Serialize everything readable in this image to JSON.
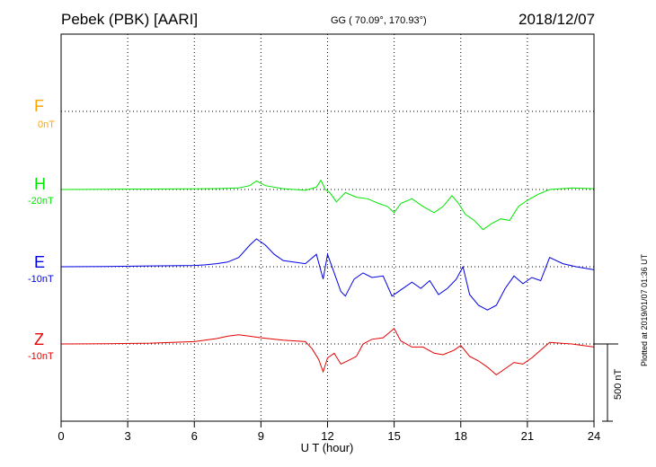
{
  "header": {
    "station": "Pebek (PBK)  [AARI]",
    "coords": "GG ( 70.09°, 170.93°)",
    "date": "2018/12/07",
    "plotted": "Plotted at 2019/01/07 01:36 UT"
  },
  "scale_bar_label": "500 nT",
  "channels": [
    {
      "name": "F",
      "offset": "0nT",
      "color": "#ffa500"
    },
    {
      "name": "H",
      "offset": "-20nT",
      "color": "#00e600"
    },
    {
      "name": "E",
      "offset": "-10nT",
      "color": "#0000e6"
    },
    {
      "name": "Z",
      "offset": "-10nT",
      "color": "#e60000"
    }
  ],
  "chart_data": {
    "type": "line",
    "xlabel": "U T (hour)",
    "xlim": [
      0,
      24
    ],
    "xticks": [
      0,
      3,
      6,
      9,
      12,
      15,
      18,
      21,
      24
    ],
    "scale_nT": 500,
    "grid": true,
    "series": [
      {
        "name": "H",
        "color": "#00e600",
        "x": [
          0,
          2,
          4,
          6,
          7,
          8,
          8.5,
          8.8,
          9.2,
          10,
          11,
          11.5,
          11.7,
          11.9,
          12.1,
          12.4,
          12.8,
          13.3,
          13.8,
          14.3,
          14.7,
          15.0,
          15.3,
          15.8,
          16.3,
          16.8,
          17.2,
          17.6,
          17.9,
          18.2,
          18.6,
          19.0,
          19.4,
          19.8,
          20.2,
          20.6,
          21.0,
          21.5,
          22,
          23,
          24
        ],
        "y": [
          0,
          2,
          3,
          4,
          6,
          10,
          25,
          55,
          25,
          5,
          -5,
          15,
          60,
          0,
          -20,
          -80,
          -20,
          -50,
          -60,
          -90,
          -110,
          -150,
          -90,
          -60,
          -110,
          -150,
          -110,
          -40,
          -90,
          -160,
          -200,
          -260,
          -220,
          -190,
          -200,
          -110,
          -70,
          -30,
          0,
          10,
          5
        ]
      },
      {
        "name": "E",
        "color": "#0000e6",
        "x": [
          0,
          2,
          4,
          6,
          6.5,
          7,
          7.5,
          8,
          8.5,
          8.8,
          9.2,
          9.6,
          10,
          11,
          11.5,
          11.8,
          12.0,
          12.3,
          12.6,
          12.8,
          13.2,
          13.6,
          14.0,
          14.5,
          14.9,
          15.3,
          15.8,
          16.2,
          16.6,
          17.0,
          17.4,
          17.8,
          18.1,
          18.4,
          18.8,
          19.2,
          19.6,
          20.0,
          20.4,
          20.8,
          21.2,
          21.6,
          22,
          22.6,
          23.2,
          24
        ],
        "y": [
          0,
          2,
          5,
          8,
          12,
          20,
          30,
          60,
          140,
          180,
          140,
          80,
          40,
          20,
          80,
          -80,
          80,
          -40,
          -160,
          -190,
          -80,
          -40,
          -70,
          -60,
          -190,
          -150,
          -100,
          -140,
          -90,
          -180,
          -140,
          -80,
          0,
          -180,
          -250,
          -280,
          -250,
          -140,
          -60,
          -110,
          -70,
          -90,
          60,
          20,
          0,
          -20
        ]
      },
      {
        "name": "Z",
        "color": "#e60000",
        "x": [
          0,
          2,
          4,
          6,
          7,
          7.5,
          8,
          8.5,
          9,
          10,
          11,
          11.3,
          11.6,
          11.8,
          12.0,
          12.3,
          12.6,
          12.9,
          13.3,
          13.6,
          14.0,
          14.5,
          15.0,
          15.3,
          15.8,
          16.3,
          16.8,
          17.2,
          17.7,
          18.0,
          18.4,
          18.8,
          19.2,
          19.6,
          20.0,
          20.4,
          20.8,
          21.2,
          21.6,
          22,
          23,
          24
        ],
        "y": [
          0,
          2,
          5,
          15,
          35,
          50,
          60,
          50,
          40,
          25,
          15,
          -30,
          -100,
          -180,
          -90,
          -60,
          -130,
          -110,
          -80,
          0,
          30,
          40,
          100,
          20,
          -20,
          -20,
          -60,
          -70,
          -40,
          -10,
          -80,
          -110,
          -150,
          -200,
          -160,
          -120,
          -130,
          -90,
          -40,
          10,
          0,
          -20
        ]
      }
    ]
  }
}
